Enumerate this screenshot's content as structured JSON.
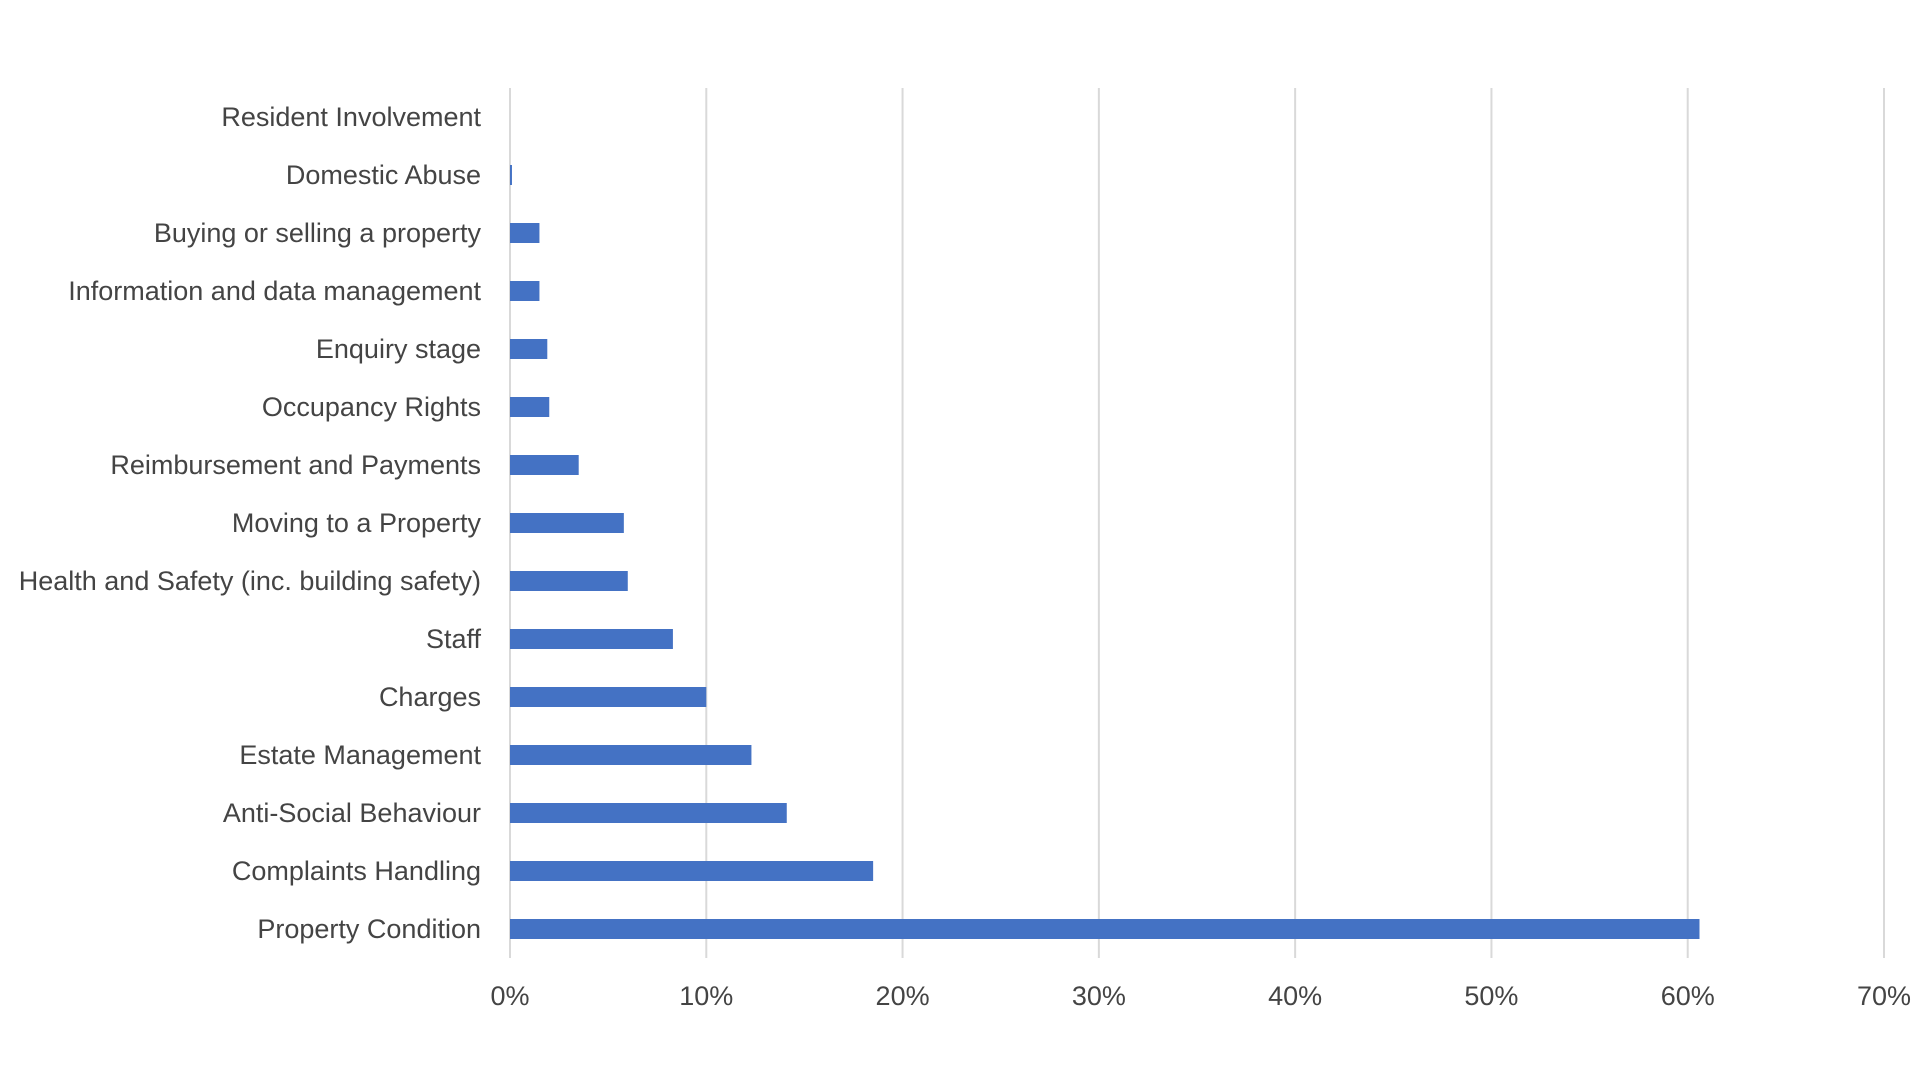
{
  "chart_data": {
    "type": "bar",
    "orientation": "horizontal",
    "categories": [
      "Resident Involvement",
      "Domestic Abuse",
      "Buying or selling a property",
      "Information and data management",
      "Enquiry stage",
      "Occupancy Rights",
      "Reimbursement and Payments",
      "Moving to a Property",
      "Health and Safety (inc. building safety)",
      "Staff",
      "Charges",
      "Estate Management",
      "Anti-Social Behaviour",
      "Complaints Handling",
      "Property Condition"
    ],
    "values": [
      0,
      0.1,
      1.5,
      1.5,
      1.9,
      2.0,
      3.5,
      5.8,
      6.0,
      8.3,
      10.0,
      12.3,
      14.1,
      18.5,
      60.6
    ],
    "unit": "%",
    "title": "",
    "xlabel": "",
    "ylabel": "",
    "xlim": [
      0,
      70
    ],
    "ticks": [
      "0%",
      "10%",
      "20%",
      "30%",
      "40%",
      "50%",
      "60%",
      "70%"
    ],
    "tick_values": [
      0,
      10,
      20,
      30,
      40,
      50,
      60,
      70
    ],
    "bar_color": "#4472c4",
    "grid": true,
    "legend": "none"
  }
}
